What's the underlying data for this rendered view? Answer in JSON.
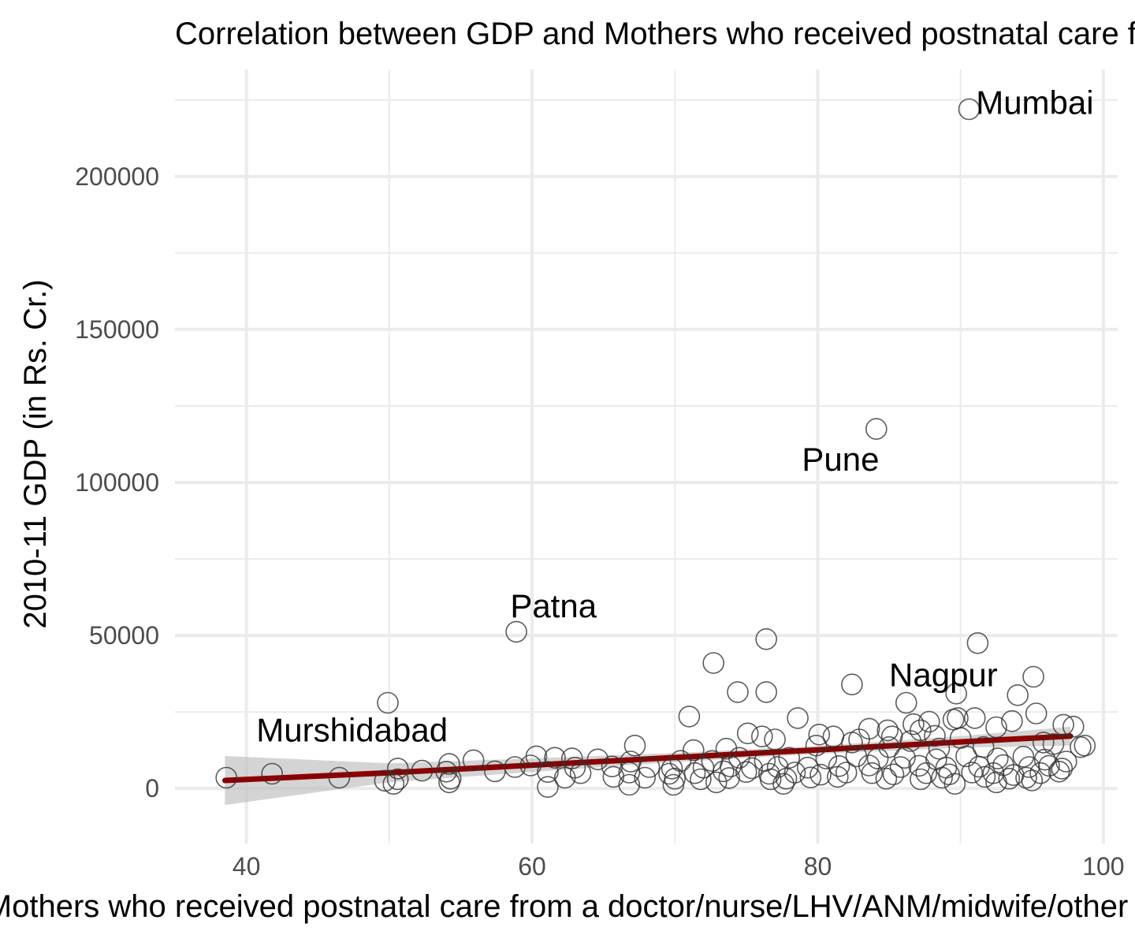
{
  "chart_data": {
    "type": "scatter",
    "title": "Correlation between GDP and Mothers who received postnatal care from a doctor/nurse/LHV/ANM/midwife/other health personnel",
    "xlabel": "Mothers who received postnatal care from a doctor/nurse/LHV/ANM/midwife/other health personnel",
    "ylabel": "2010-11 GDP (in Rs. Cr.)",
    "xlim": [
      35,
      101
    ],
    "ylim": [
      -18000,
      235000
    ],
    "x_ticks": [
      40,
      60,
      80,
      100
    ],
    "x_tick_labels": [
      "40",
      "60",
      "80",
      "100"
    ],
    "y_ticks": [
      0,
      50000,
      100000,
      150000,
      200000
    ],
    "y_tick_labels": [
      "0",
      "50000",
      "100000",
      "150000",
      "200000"
    ],
    "grid": true,
    "legend": "none",
    "colors": {
      "points": "#333333",
      "trend": "#8b0000",
      "band": "#bdbdbd",
      "grid": "#ebebeb"
    },
    "labels": [
      {
        "text": "Mumbai",
        "x": 95.2,
        "y": 224000
      },
      {
        "text": "Pune",
        "x": 81.6,
        "y": 107500
      },
      {
        "text": "Patna",
        "x": 61.5,
        "y": 59500
      },
      {
        "text": "Nagpur",
        "x": 88.8,
        "y": 37000
      },
      {
        "text": "Murshidabad",
        "x": 47.4,
        "y": 19000
      }
    ],
    "trend": {
      "x": [
        38.5,
        50,
        60,
        70,
        80,
        90,
        97.7
      ],
      "y": [
        2600,
        5100,
        7600,
        10100,
        12600,
        15200,
        17100
      ],
      "lower": [
        -5400,
        2000,
        5400,
        8600,
        11300,
        13300,
        14000
      ],
      "upper": [
        10600,
        8200,
        9800,
        11600,
        13900,
        17100,
        20200
      ]
    },
    "points": [
      [
        90.6,
        222000
      ],
      [
        84.1,
        117500
      ],
      [
        58.9,
        51200
      ],
      [
        76.4,
        48800
      ],
      [
        91.2,
        47500
      ],
      [
        72.7,
        41000
      ],
      [
        95.1,
        36500
      ],
      [
        82.4,
        34000
      ],
      [
        74.4,
        31500
      ],
      [
        76.4,
        31500
      ],
      [
        89.7,
        31000
      ],
      [
        94.0,
        30500
      ],
      [
        49.9,
        28000
      ],
      [
        86.2,
        28000
      ],
      [
        71.0,
        23500
      ],
      [
        78.6,
        23000
      ],
      [
        89.8,
        23000
      ],
      [
        95.3,
        24500
      ],
      [
        91.0,
        23000
      ],
      [
        93.6,
        22000
      ],
      [
        87.8,
        21800
      ],
      [
        86.7,
        21000
      ],
      [
        92.5,
        20000
      ],
      [
        97.2,
        20800
      ],
      [
        97.9,
        20200
      ],
      [
        83.6,
        19500
      ],
      [
        84.9,
        19000
      ],
      [
        75.1,
        18000
      ],
      [
        80.1,
        17600
      ],
      [
        81.1,
        17000
      ],
      [
        85.2,
        17000
      ],
      [
        88.2,
        17200
      ],
      [
        76.1,
        17000
      ],
      [
        77.0,
        16000
      ],
      [
        82.4,
        15000
      ],
      [
        86.5,
        15500
      ],
      [
        90.0,
        16500
      ],
      [
        95.8,
        15000
      ],
      [
        67.2,
        14000
      ],
      [
        71.3,
        12500
      ],
      [
        73.6,
        13000
      ],
      [
        79.9,
        14000
      ],
      [
        85.0,
        13500
      ],
      [
        88.5,
        13000
      ],
      [
        91.6,
        13500
      ],
      [
        96.5,
        14500
      ],
      [
        98.7,
        14000
      ],
      [
        60.3,
        10500
      ],
      [
        61.6,
        10000
      ],
      [
        62.8,
        9800
      ],
      [
        64.6,
        9500
      ],
      [
        66.9,
        8800
      ],
      [
        70.4,
        9000
      ],
      [
        72.6,
        9000
      ],
      [
        74.5,
        10000
      ],
      [
        76.3,
        9000
      ],
      [
        78.0,
        10000
      ],
      [
        80.6,
        9800
      ],
      [
        82.7,
        10500
      ],
      [
        84.2,
        9800
      ],
      [
        86.1,
        10000
      ],
      [
        88.3,
        9500
      ],
      [
        90.4,
        10500
      ],
      [
        92.6,
        9800
      ],
      [
        94.4,
        10400
      ],
      [
        95.9,
        9400
      ],
      [
        97.4,
        8800
      ],
      [
        55.9,
        9200
      ],
      [
        54.2,
        8000
      ],
      [
        59.9,
        7500
      ],
      [
        63.0,
        6800
      ],
      [
        65.6,
        7200
      ],
      [
        68.2,
        7000
      ],
      [
        69.8,
        6500
      ],
      [
        72.0,
        6800
      ],
      [
        73.9,
        7200
      ],
      [
        75.4,
        6600
      ],
      [
        77.2,
        7000
      ],
      [
        79.3,
        6800
      ],
      [
        81.5,
        7300
      ],
      [
        83.6,
        7500
      ],
      [
        85.8,
        7000
      ],
      [
        87.1,
        7400
      ],
      [
        89.0,
        6800
      ],
      [
        91.3,
        7100
      ],
      [
        93.0,
        7600
      ],
      [
        94.8,
        7000
      ],
      [
        96.2,
        7400
      ],
      [
        50.6,
        6500
      ],
      [
        52.3,
        5800
      ],
      [
        54.0,
        5500
      ],
      [
        57.4,
        5600
      ],
      [
        58.8,
        7000
      ],
      [
        61.1,
        5400
      ],
      [
        63.4,
        5000
      ],
      [
        66.8,
        5200
      ],
      [
        69.6,
        4800
      ],
      [
        71.4,
        5000
      ],
      [
        73.4,
        5600
      ],
      [
        75.0,
        5400
      ],
      [
        76.6,
        4800
      ],
      [
        78.4,
        5200
      ],
      [
        80.2,
        4500
      ],
      [
        82.0,
        5200
      ],
      [
        83.8,
        5000
      ],
      [
        85.3,
        4600
      ],
      [
        87.6,
        5000
      ],
      [
        89.2,
        4600
      ],
      [
        90.8,
        5200
      ],
      [
        92.3,
        5000
      ],
      [
        93.7,
        4400
      ],
      [
        95.6,
        5000
      ],
      [
        96.9,
        5500
      ],
      [
        41.8,
        4800
      ],
      [
        46.5,
        3500
      ],
      [
        49.7,
        2500
      ],
      [
        50.6,
        3000
      ],
      [
        54.3,
        3200
      ],
      [
        62.3,
        3500
      ],
      [
        65.7,
        3800
      ],
      [
        67.9,
        3500
      ],
      [
        70.0,
        3200
      ],
      [
        71.8,
        3000
      ],
      [
        73.8,
        3400
      ],
      [
        76.7,
        3000
      ],
      [
        77.8,
        3200
      ],
      [
        79.5,
        3600
      ],
      [
        81.4,
        3800
      ],
      [
        84.8,
        3200
      ],
      [
        87.2,
        3000
      ],
      [
        88.7,
        3500
      ],
      [
        91.7,
        3800
      ],
      [
        93.4,
        3200
      ],
      [
        94.6,
        3500
      ],
      [
        38.6,
        3500
      ],
      [
        50.3,
        1500
      ],
      [
        54.2,
        2000
      ],
      [
        61.1,
        500
      ],
      [
        66.8,
        1200
      ],
      [
        69.9,
        1200
      ],
      [
        72.9,
        2000
      ],
      [
        77.6,
        1500
      ],
      [
        89.6,
        1500
      ],
      [
        92.5,
        2000
      ],
      [
        95.0,
        2600
      ],
      [
        97.1,
        6500
      ],
      [
        98.4,
        13500
      ],
      [
        82.9,
        16000
      ],
      [
        87.2,
        19000
      ],
      [
        89.5,
        22500
      ]
    ]
  }
}
